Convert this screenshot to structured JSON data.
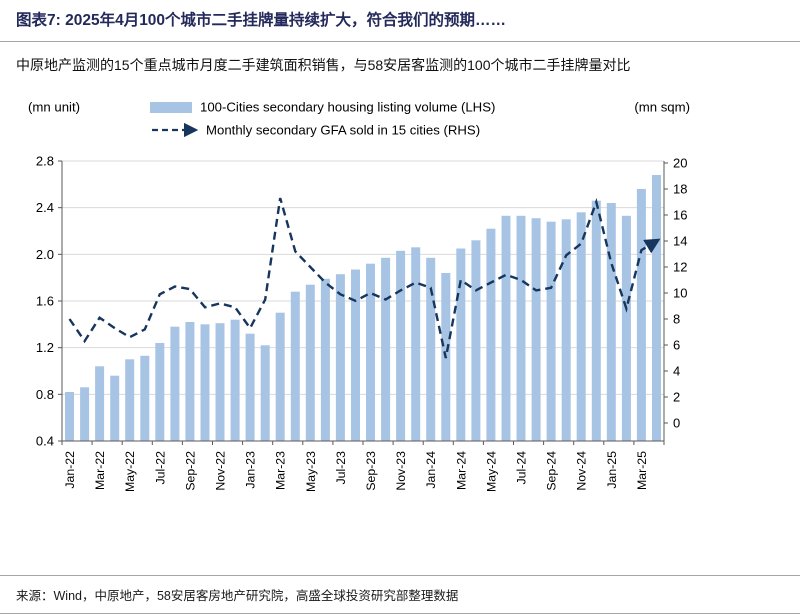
{
  "page": {
    "title": "图表7:  2025年4月100个城市二手挂牌量持续扩大，符合我们的预期……",
    "subtitle": "中原地产监测的15个重点城市月度二手建筑面积销售，与58安居客监测的100个城市二手挂牌量对比",
    "source": "来源：Wind，中原地产，58安居客房地产研究院，高盛全球投资研究部整理数据"
  },
  "chart_data": {
    "type": "bar",
    "title": "",
    "left_axis_unit": "(mn unit)",
    "right_axis_unit": "(mn sqm)",
    "lhs_range": [
      0.4,
      2.8
    ],
    "rhs_range": [
      0,
      20
    ],
    "lhs_ticks": [
      "2.8",
      "2.4",
      "2.0",
      "1.6",
      "1.2",
      "0.8",
      "0.4"
    ],
    "rhs_ticks": [
      "20",
      "18",
      "16",
      "14",
      "12",
      "10",
      "8",
      "6",
      "4",
      "2",
      "0"
    ],
    "grid": true,
    "legend_position": "top",
    "colors": {
      "bar": "#a8c4e4",
      "line": "#17365d",
      "grid": "#d9d9d9",
      "axis": "#595959",
      "text": "#000000",
      "title": "#23295a"
    },
    "categories": [
      "Jan-22",
      "Feb-22",
      "Mar-22",
      "Apr-22",
      "May-22",
      "Jun-22",
      "Jul-22",
      "Aug-22",
      "Sep-22",
      "Oct-22",
      "Nov-22",
      "Dec-22",
      "Jan-23",
      "Feb-23",
      "Mar-23",
      "Apr-23",
      "May-23",
      "Jun-23",
      "Jul-23",
      "Aug-23",
      "Sep-23",
      "Oct-23",
      "Nov-23",
      "Dec-23",
      "Jan-24",
      "Feb-24",
      "Mar-24",
      "Apr-24",
      "May-24",
      "Jun-24",
      "Jul-24",
      "Aug-24",
      "Sep-24",
      "Oct-24",
      "Nov-24",
      "Dec-24",
      "Jan-25",
      "Feb-25",
      "Mar-25",
      "Apr-25"
    ],
    "x_tick_labels": [
      "Jan-22",
      "Mar-22",
      "May-22",
      "Jul-22",
      "Sep-22",
      "Nov-22",
      "Jan-23",
      "Mar-23",
      "May-23",
      "Jul-23",
      "Sep-23",
      "Nov-23",
      "Jan-24",
      "Mar-24",
      "May-24",
      "Jul-24",
      "Sep-24",
      "Nov-24",
      "Jan-25",
      "Mar-25"
    ],
    "series": [
      {
        "name": "100-Cities secondary housing listing volume (LHS)",
        "type": "bar",
        "axis": "left",
        "values": [
          0.82,
          0.86,
          1.04,
          0.96,
          1.1,
          1.13,
          1.24,
          1.38,
          1.42,
          1.4,
          1.41,
          1.44,
          1.32,
          1.22,
          1.5,
          1.68,
          1.74,
          1.79,
          1.83,
          1.87,
          1.92,
          1.97,
          2.03,
          2.06,
          1.97,
          1.84,
          2.05,
          2.12,
          2.22,
          2.33,
          2.33,
          2.31,
          2.28,
          2.3,
          2.36,
          2.46,
          2.44,
          2.33,
          2.56,
          2.68
        ]
      },
      {
        "name": "Monthly secondary GFA sold in 15 cities (RHS)",
        "type": "line",
        "style": "dashed-arrow",
        "axis": "right",
        "values": [
          8.0,
          6.3,
          8.1,
          7.3,
          6.6,
          7.2,
          9.9,
          10.5,
          10.3,
          8.9,
          9.2,
          8.9,
          7.3,
          9.5,
          17.3,
          13.2,
          12.0,
          10.8,
          9.9,
          9.4,
          10.0,
          9.5,
          10.2,
          10.8,
          10.4,
          5.0,
          11.0,
          10.2,
          10.8,
          11.4,
          11.0,
          10.2,
          10.4,
          12.9,
          13.8,
          17.0,
          12.3,
          8.8,
          13.3,
          14.0
        ]
      }
    ]
  }
}
